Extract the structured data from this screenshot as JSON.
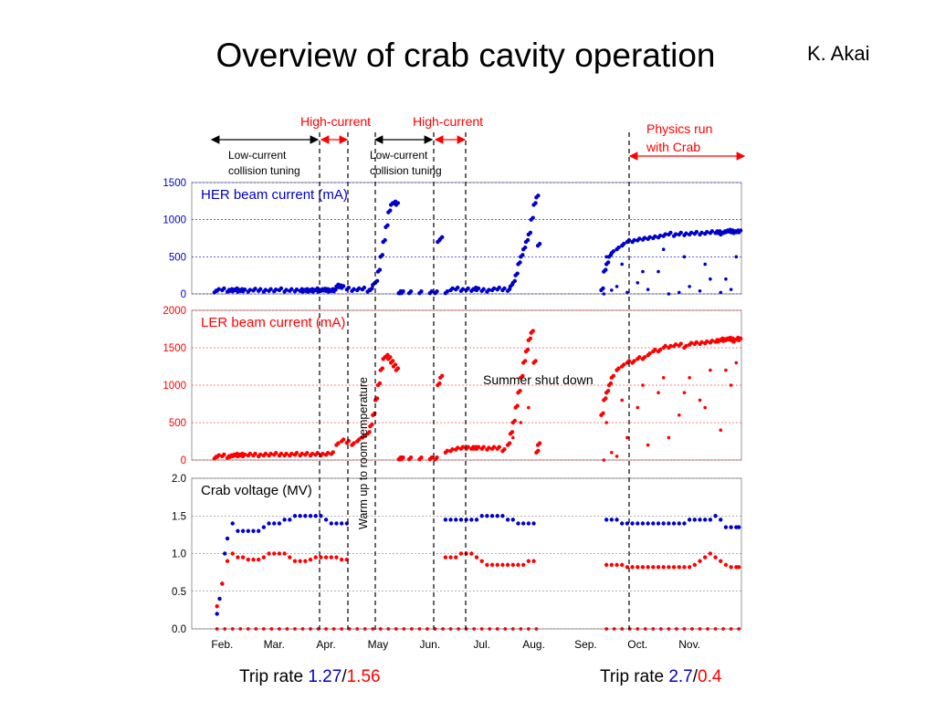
{
  "title": "Overview of crab cavity operation",
  "author": "K. Akai",
  "chart_data": [
    {
      "type": "scatter",
      "title": "HER beam current (mA)",
      "color": "#0000cc",
      "grid_color": "#0000cc",
      "ylim": [
        0,
        1500
      ],
      "yticks": [
        "0",
        "500",
        "1000",
        "1500"
      ],
      "series": [
        {
          "x": [
            0.05,
            0.1,
            0.2,
            0.3,
            0.35,
            0.4,
            0.45,
            0.5,
            0.55,
            0.6,
            0.7,
            0.8,
            0.9,
            1.0,
            1.1,
            1.2,
            1.3,
            1.4,
            1.5,
            1.6,
            1.7,
            1.75,
            1.8,
            1.85,
            1.9,
            1.95,
            2.0,
            2.05,
            2.1,
            2.15,
            2.2,
            2.25,
            2.3,
            2.35,
            2.4,
            2.45,
            2.5,
            2.6,
            2.7,
            2.8,
            2.9,
            3.0,
            3.05,
            3.1,
            3.15,
            3.2,
            3.25,
            3.3,
            3.35,
            3.4,
            3.45,
            3.5,
            3.55,
            3.6,
            3.62,
            3.65,
            3.8,
            4.0,
            4.2,
            4.3,
            4.35,
            4.4,
            4.5,
            4.6,
            4.7,
            4.8,
            4.9,
            5.0,
            5.05,
            5.1,
            5.2,
            5.3,
            5.4,
            5.5,
            5.6,
            5.7,
            5.75,
            5.8,
            5.85,
            5.9,
            5.95,
            6.0,
            6.05,
            6.1,
            6.15,
            6.2,
            6.25,
            6.28,
            7.5,
            7.55,
            7.6,
            7.65,
            7.7,
            7.8,
            7.9,
            8.0,
            8.1,
            8.2,
            8.3,
            8.4,
            8.5,
            8.6,
            8.7,
            8.8,
            8.9,
            9.0,
            9.1,
            9.2,
            9.3,
            9.4,
            9.5,
            9.6,
            9.7,
            9.75,
            9.8,
            9.85,
            9.9,
            9.95,
            10.0,
            10.05,
            10.1,
            10.15
          ],
          "y": [
            20,
            40,
            50,
            30,
            40,
            35,
            50,
            30,
            40,
            35,
            30,
            45,
            40,
            30,
            40,
            35,
            50,
            30,
            40,
            35,
            40,
            30,
            40,
            30,
            40,
            30,
            50,
            30,
            40,
            45,
            40,
            30,
            40,
            35,
            100,
            90,
            80,
            60,
            40,
            50,
            60,
            30,
            50,
            120,
            150,
            300,
            500,
            700,
            900,
            1100,
            1200,
            1220,
            1200,
            10,
            10,
            10,
            10,
            10,
            10,
            10,
            700,
            740,
            10,
            50,
            60,
            40,
            50,
            40,
            60,
            50,
            40,
            30,
            50,
            60,
            50,
            40,
            100,
            150,
            250,
            400,
            500,
            600,
            700,
            800,
            1000,
            1200,
            1300,
            650,
            50,
            300,
            400,
            500,
            550,
            600,
            650,
            700,
            700,
            720,
            730,
            740,
            750,
            760,
            780,
            800,
            780,
            800,
            790,
            800,
            810,
            800,
            810,
            820,
            820,
            820,
            800,
            820,
            830,
            840,
            830,
            820,
            830,
            830
          ],
          "x2": [
            7.55,
            7.7,
            7.8,
            8.0,
            8.2,
            8.4,
            8.6,
            8.8,
            9.0,
            9.2,
            9.4,
            9.6,
            9.8,
            10.0,
            7.6,
            7.9,
            8.3,
            8.7,
            9.1,
            9.5,
            9.9,
            10.1
          ],
          "y2": [
            0,
            50,
            100,
            20,
            150,
            60,
            300,
            0,
            20,
            100,
            40,
            200,
            20,
            60,
            500,
            400,
            300,
            600,
            500,
            400,
            200,
            500
          ]
        }
      ]
    },
    {
      "type": "scatter",
      "title": "LER beam current (mA)",
      "color": "#ff0000",
      "grid_color": "#ff0000",
      "ylim": [
        0,
        2000
      ],
      "yticks": [
        "0",
        "500",
        "1000",
        "1500",
        "2000"
      ],
      "series": [
        {
          "x": [
            0.05,
            0.1,
            0.2,
            0.3,
            0.35,
            0.4,
            0.45,
            0.5,
            0.55,
            0.6,
            0.7,
            0.8,
            0.9,
            1.0,
            1.1,
            1.2,
            1.3,
            1.4,
            1.5,
            1.6,
            1.7,
            1.8,
            1.9,
            2.0,
            2.1,
            2.2,
            2.3,
            2.4,
            2.5,
            2.6,
            2.7,
            2.8,
            2.9,
            3.0,
            3.05,
            3.1,
            3.15,
            3.2,
            3.25,
            3.3,
            3.35,
            3.4,
            3.45,
            3.5,
            3.55,
            3.6,
            3.62,
            3.65,
            3.8,
            4.0,
            4.2,
            4.3,
            4.35,
            4.4,
            4.5,
            4.6,
            4.7,
            4.8,
            4.9,
            5.0,
            5.05,
            5.1,
            5.2,
            5.3,
            5.4,
            5.5,
            5.6,
            5.7,
            5.75,
            5.8,
            5.85,
            5.9,
            5.95,
            6.0,
            6.05,
            6.1,
            6.15,
            6.2,
            6.25,
            6.28,
            7.5,
            7.55,
            7.6,
            7.65,
            7.7,
            7.8,
            7.9,
            8.0,
            8.1,
            8.2,
            8.3,
            8.4,
            8.5,
            8.6,
            8.7,
            8.8,
            8.9,
            9.0,
            9.1,
            9.2,
            9.3,
            9.4,
            9.5,
            9.6,
            9.7,
            9.75,
            9.8,
            9.85,
            9.9,
            9.95,
            10.0,
            10.05,
            10.1,
            10.15
          ],
          "y": [
            20,
            40,
            50,
            30,
            40,
            50,
            60,
            50,
            60,
            50,
            60,
            60,
            50,
            60,
            60,
            70,
            60,
            60,
            60,
            70,
            60,
            70,
            60,
            70,
            60,
            70,
            80,
            200,
            250,
            230,
            200,
            250,
            300,
            350,
            450,
            600,
            800,
            1000,
            1200,
            1350,
            1380,
            1350,
            1300,
            1250,
            1200,
            10,
            10,
            10,
            10,
            10,
            10,
            10,
            1000,
            1100,
            100,
            120,
            140,
            150,
            150,
            150,
            150,
            150,
            150,
            140,
            150,
            150,
            120,
            200,
            350,
            500,
            700,
            900,
            1100,
            1300,
            1450,
            1600,
            1700,
            1300,
            100,
            200,
            600,
            800,
            900,
            1000,
            1100,
            1200,
            1250,
            1300,
            1300,
            1350,
            1350,
            1400,
            1450,
            1450,
            1500,
            1500,
            1520,
            1530,
            1500,
            1540,
            1550,
            1550,
            1560,
            1570,
            1580,
            1580,
            1600,
            1590,
            1600,
            1610,
            1600,
            1580,
            1610,
            1600
          ],
          "x2": [
            7.55,
            7.7,
            7.8,
            8.0,
            8.2,
            8.4,
            8.6,
            8.8,
            9.0,
            9.2,
            9.4,
            9.6,
            9.8,
            10.0,
            7.6,
            7.9,
            8.3,
            8.7,
            9.1,
            9.5,
            9.9,
            10.1,
            5.8,
            5.95,
            6.1
          ],
          "y2": [
            0,
            100,
            50,
            300,
            700,
            200,
            900,
            300,
            600,
            1100,
            800,
            1200,
            400,
            1000,
            500,
            800,
            1000,
            1100,
            900,
            700,
            1200,
            1300,
            300,
            500,
            700
          ]
        }
      ]
    },
    {
      "type": "scatter",
      "title": "Crab voltage (MV)",
      "color": "#000000",
      "grid_color": "#666666",
      "ylim": [
        0,
        2
      ],
      "yticks": [
        "0.0",
        "0.5",
        "1.0",
        "1.5",
        "2.0"
      ],
      "xticks": [
        "Feb.",
        "Mar.",
        "Apr.",
        "May",
        "Jun.",
        "Jul.",
        "Aug.",
        "Sep.",
        "Oct.",
        "Nov."
      ],
      "series": [
        {
          "name": "HER",
          "color": "#0000cc",
          "x": [
            0.1,
            0.15,
            0.2,
            0.25,
            0.3,
            0.4,
            0.5,
            0.6,
            0.7,
            0.8,
            0.9,
            1.0,
            1.1,
            1.2,
            1.3,
            1.4,
            1.5,
            1.6,
            1.7,
            1.8,
            1.9,
            2.0,
            2.1,
            2.2,
            2.3,
            2.4,
            2.5,
            2.6,
            4.5,
            4.6,
            4.7,
            4.8,
            4.9,
            5.0,
            5.1,
            5.2,
            5.3,
            5.4,
            5.5,
            5.6,
            5.7,
            5.8,
            5.9,
            6.0,
            6.1,
            6.2,
            7.6,
            7.7,
            7.8,
            7.9,
            8.0,
            8.1,
            8.2,
            8.3,
            8.4,
            8.5,
            8.6,
            8.7,
            8.8,
            8.9,
            9.0,
            9.1,
            9.2,
            9.3,
            9.4,
            9.5,
            9.6,
            9.7,
            9.8,
            9.9,
            10.0,
            10.1,
            10.15
          ],
          "y": [
            0.2,
            0.4,
            0.6,
            1.0,
            1.2,
            1.4,
            1.3,
            1.3,
            1.3,
            1.3,
            1.3,
            1.35,
            1.4,
            1.4,
            1.4,
            1.45,
            1.45,
            1.5,
            1.5,
            1.5,
            1.5,
            1.5,
            1.5,
            1.45,
            1.4,
            1.4,
            1.4,
            1.4,
            1.45,
            1.45,
            1.45,
            1.45,
            1.45,
            1.45,
            1.45,
            1.5,
            1.5,
            1.5,
            1.5,
            1.5,
            1.45,
            1.45,
            1.4,
            1.4,
            1.4,
            1.4,
            1.45,
            1.45,
            1.45,
            1.4,
            1.4,
            1.4,
            1.4,
            1.4,
            1.4,
            1.4,
            1.4,
            1.4,
            1.4,
            1.4,
            1.4,
            1.4,
            1.45,
            1.45,
            1.45,
            1.45,
            1.45,
            1.5,
            1.45,
            1.35,
            1.35,
            1.35,
            1.35
          ]
        },
        {
          "name": "LER",
          "color": "#ff0000",
          "x": [
            0.1,
            0.2,
            0.3,
            0.4,
            0.5,
            0.6,
            0.7,
            0.8,
            0.9,
            1.0,
            1.1,
            1.2,
            1.3,
            1.4,
            1.5,
            1.6,
            1.7,
            1.8,
            1.9,
            2.0,
            2.1,
            2.2,
            2.3,
            2.4,
            2.5,
            2.6,
            4.5,
            4.6,
            4.7,
            4.8,
            4.9,
            5.0,
            5.1,
            5.2,
            5.3,
            5.4,
            5.5,
            5.6,
            5.7,
            5.8,
            5.9,
            6.0,
            6.1,
            6.2,
            7.6,
            7.7,
            7.8,
            7.9,
            8.0,
            8.1,
            8.2,
            8.3,
            8.4,
            8.5,
            8.6,
            8.7,
            8.8,
            8.9,
            9.0,
            9.1,
            9.2,
            9.3,
            9.4,
            9.5,
            9.6,
            9.7,
            9.8,
            9.9,
            10.0,
            10.1,
            10.15
          ],
          "y": [
            0.3,
            0.6,
            0.9,
            1.0,
            0.95,
            0.95,
            0.92,
            0.92,
            0.92,
            0.95,
            1.0,
            1.0,
            1.0,
            1.0,
            0.95,
            0.9,
            0.9,
            0.9,
            0.92,
            0.95,
            0.95,
            0.95,
            0.95,
            0.95,
            0.92,
            0.92,
            0.95,
            0.95,
            0.95,
            1.0,
            1.0,
            1.0,
            0.95,
            0.9,
            0.85,
            0.85,
            0.85,
            0.85,
            0.85,
            0.85,
            0.85,
            0.85,
            0.9,
            0.9,
            0.85,
            0.85,
            0.85,
            0.85,
            0.82,
            0.82,
            0.82,
            0.82,
            0.82,
            0.82,
            0.82,
            0.82,
            0.82,
            0.82,
            0.82,
            0.82,
            0.82,
            0.85,
            0.9,
            0.95,
            1.0,
            0.95,
            0.9,
            0.85,
            0.82,
            0.82,
            0.82
          ]
        }
      ]
    }
  ],
  "annotations": {
    "high_current_1": "High-current",
    "high_current_2": "High-current",
    "low_current_1": "Low-current\ncollision tuning",
    "low_current_2": "Low-current\ncollision tuning",
    "physics_run": "Physics run\nwith Crab",
    "summer_shutdown": "Summer shut down",
    "warm_up": "Warm up to room temperature"
  },
  "trip_left": {
    "label": "Trip rate ",
    "her": "1.27",
    "sep": "/",
    "ler": "1.56"
  },
  "trip_right": {
    "label": "Trip rate ",
    "her": "2.7",
    "sep": "/",
    "ler": "0.4"
  }
}
